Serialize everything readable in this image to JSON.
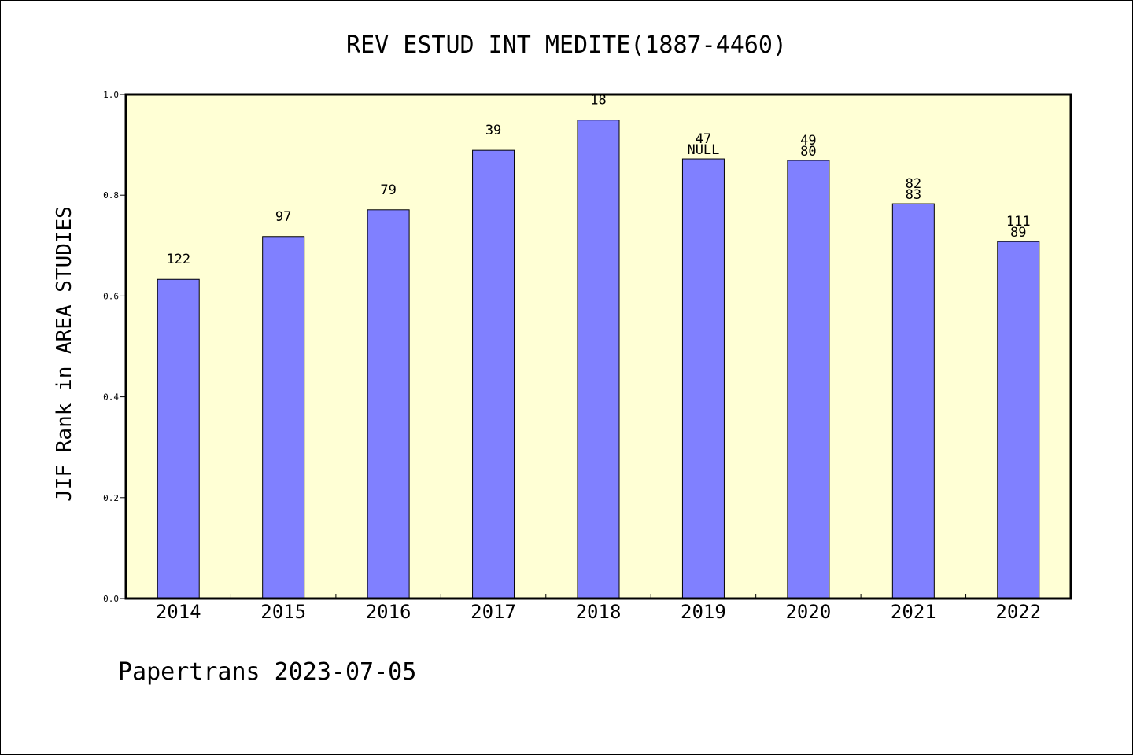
{
  "chart_data": {
    "type": "bar",
    "title": "REV ESTUD INT MEDITE(1887-4460)",
    "xlabel": "",
    "ylabel": "JIF Rank in AREA STUDIES",
    "ylim": [
      0,
      1.0
    ],
    "yticks": [
      "0.0",
      "0.2",
      "0.4",
      "0.6",
      "0.8",
      "1.0"
    ],
    "categories": [
      "2014",
      "2015",
      "2016",
      "2017",
      "2018",
      "2019",
      "2020",
      "2021",
      "2022"
    ],
    "values": [
      0.633,
      0.718,
      0.771,
      0.889,
      0.949,
      0.872,
      0.869,
      0.783,
      0.708
    ],
    "bar_labels": [
      [
        "122"
      ],
      [
        "97"
      ],
      [
        "79"
      ],
      [
        "39"
      ],
      [
        "18"
      ],
      [
        "47",
        "NULL"
      ],
      [
        "49",
        "80"
      ],
      [
        "82",
        "83"
      ],
      [
        "111",
        "89"
      ]
    ],
    "grid": false,
    "colors": {
      "bar": "#8080ff",
      "plot_bg": "#ffffd5",
      "frame": "#000000"
    }
  },
  "footer": "Papertrans 2023-07-05"
}
